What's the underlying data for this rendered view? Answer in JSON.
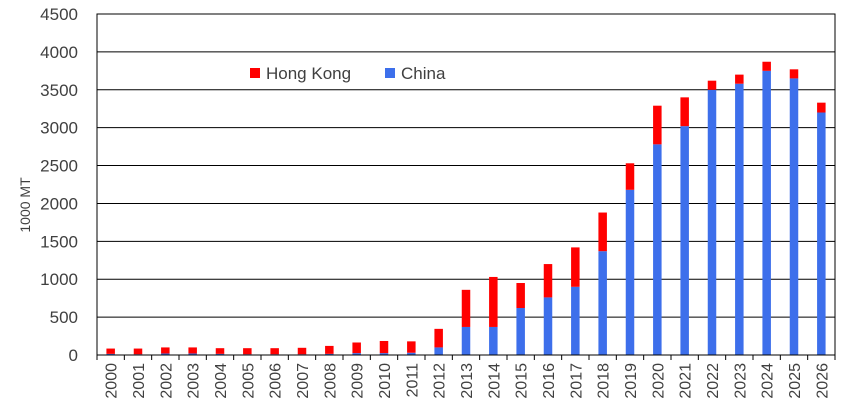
{
  "chart_data": {
    "type": "bar",
    "stacked": true,
    "title": "",
    "xlabel": "",
    "ylabel": "1000 MT",
    "ylim": [
      0,
      4500
    ],
    "yticks": [
      0,
      500,
      1000,
      1500,
      2000,
      2500,
      3000,
      3500,
      4000,
      4500
    ],
    "grid": true,
    "legend_position": "top-left inside plot",
    "categories": [
      "2000",
      "2001",
      "2002",
      "2003",
      "2004",
      "2005",
      "2006",
      "2007",
      "2008",
      "2009",
      "2010",
      "2011",
      "2012",
      "2013",
      "2014",
      "2015",
      "2016",
      "2017",
      "2018",
      "2019",
      "2020",
      "2021",
      "2022",
      "2023",
      "2024",
      "2025",
      "2026"
    ],
    "series": [
      {
        "name": "China",
        "color": "#3D6FEB",
        "values": [
          15,
          10,
          20,
          20,
          15,
          10,
          10,
          10,
          15,
          25,
          25,
          30,
          100,
          370,
          370,
          620,
          760,
          900,
          1370,
          2180,
          2780,
          3020,
          3500,
          3580,
          3750,
          3650,
          3200
        ]
      },
      {
        "name": "Hong Kong",
        "color": "#FF0000",
        "values": [
          70,
          75,
          80,
          80,
          75,
          80,
          80,
          85,
          105,
          140,
          160,
          150,
          245,
          490,
          660,
          330,
          440,
          520,
          510,
          350,
          510,
          380,
          120,
          120,
          120,
          120,
          130
        ]
      }
    ],
    "legend_order": [
      "Hong Kong",
      "China"
    ]
  }
}
